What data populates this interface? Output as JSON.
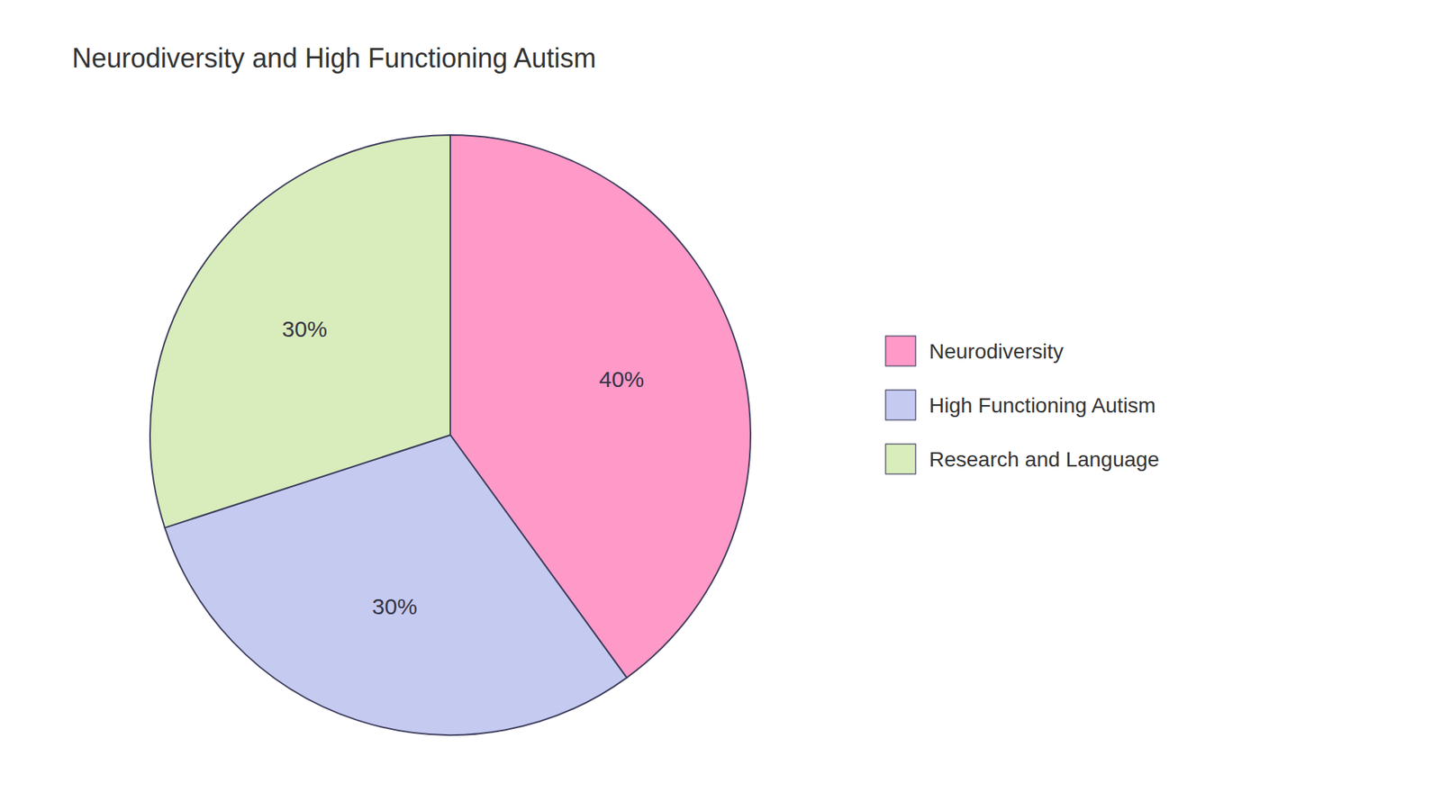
{
  "chart_data": {
    "type": "pie",
    "title": "Neurodiversity and High Functioning Autism",
    "categories": [
      "Neurodiversity",
      "High Functioning Autism",
      "Research and Language"
    ],
    "values": [
      40,
      30,
      30
    ],
    "value_labels": [
      "40%",
      "30%",
      "30%"
    ],
    "colors": [
      "#FF99C8",
      "#C5CAF0",
      "#D8EDBB"
    ],
    "data_labels": true,
    "legend": "right"
  }
}
